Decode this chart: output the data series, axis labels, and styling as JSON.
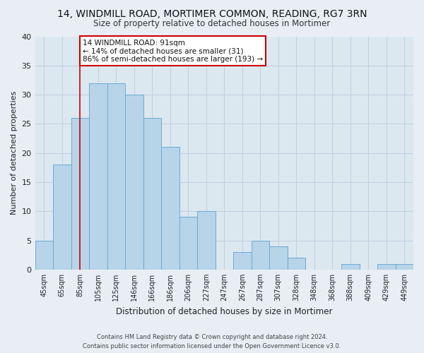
{
  "title": "14, WINDMILL ROAD, MORTIMER COMMON, READING, RG7 3RN",
  "subtitle": "Size of property relative to detached houses in Mortimer",
  "xlabel": "Distribution of detached houses by size in Mortimer",
  "ylabel": "Number of detached properties",
  "bar_labels": [
    "45sqm",
    "65sqm",
    "85sqm",
    "105sqm",
    "125sqm",
    "146sqm",
    "166sqm",
    "186sqm",
    "206sqm",
    "227sqm",
    "247sqm",
    "267sqm",
    "287sqm",
    "307sqm",
    "328sqm",
    "348sqm",
    "368sqm",
    "388sqm",
    "409sqm",
    "429sqm",
    "449sqm"
  ],
  "bar_values": [
    5,
    18,
    26,
    32,
    32,
    30,
    26,
    21,
    9,
    10,
    0,
    3,
    5,
    4,
    2,
    0,
    0,
    1,
    0,
    1,
    1
  ],
  "bar_color": "#b8d4e8",
  "bar_edge_color": "#6aaad4",
  "vline_x_index": 2,
  "vline_color": "#cc0000",
  "ylim": [
    0,
    40
  ],
  "yticks": [
    0,
    5,
    10,
    15,
    20,
    25,
    30,
    35,
    40
  ],
  "annotation_line1": "14 WINDMILL ROAD: 91sqm",
  "annotation_line2": "← 14% of detached houses are smaller (31)",
  "annotation_line3": "86% of semi-detached houses are larger (193) →",
  "annotation_box_color": "#ffffff",
  "annotation_box_edge": "#cc0000",
  "footer_line1": "Contains HM Land Registry data © Crown copyright and database right 2024.",
  "footer_line2": "Contains public sector information licensed under the Open Government Licence v3.0.",
  "background_color": "#e8eef4",
  "plot_bg_color": "#dce8f0",
  "grid_color": "#c0cfe0"
}
